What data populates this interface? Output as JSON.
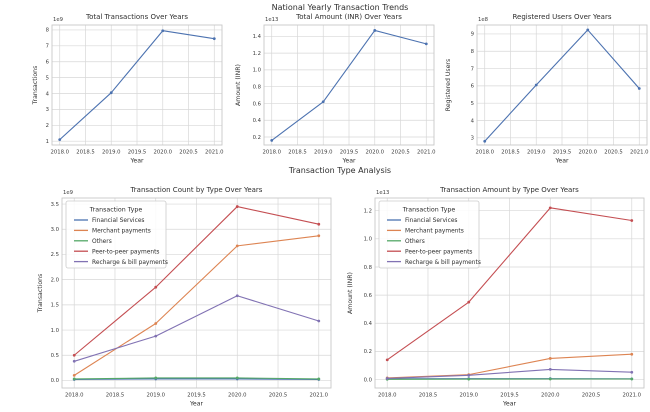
{
  "page": {
    "suptitle_top": "National Yearly Transaction Trends",
    "suptitle_bottom": "Transaction Type Analysis"
  },
  "palette": {
    "blue": "#4c72b0",
    "orange": "#dd8452",
    "green": "#55a868",
    "red": "#c44e52",
    "purple": "#8172b3",
    "grid": "#d7d7d7",
    "frame": "#c8c8c8",
    "text": "#2f2f2f"
  },
  "chart_data": [
    {
      "id": "total-transactions",
      "type": "line",
      "title": "Total Transactions Over Years",
      "xlabel": "Year",
      "ylabel": "Transactions",
      "offset_text": "1e9",
      "grid": true,
      "x": [
        2018,
        2019,
        2020,
        2021
      ],
      "xtick_values": [
        2018.0,
        2018.5,
        2019.0,
        2019.5,
        2020.0,
        2020.5,
        2021.0
      ],
      "xtick_labels": [
        "2018.0",
        "2018.5",
        "2019.0",
        "2019.5",
        "2020.0",
        "2020.5",
        "2021.0"
      ],
      "ytick_values": [
        1,
        2,
        3,
        4,
        5,
        6,
        7,
        8
      ],
      "ytick_labels": [
        "1",
        "2",
        "3",
        "4",
        "5",
        "6",
        "7",
        "8"
      ],
      "xlim": [
        2017.85,
        2021.15
      ],
      "ylim": [
        0.76,
        8.31
      ],
      "legend": null,
      "series": [
        {
          "name": "Transactions",
          "color": "#4c72b0",
          "values": [
            1.1,
            4.05,
            7.95,
            7.45
          ]
        }
      ]
    },
    {
      "id": "total-amount",
      "type": "line",
      "title": "Total Amount (INR) Over Years",
      "xlabel": "Year",
      "ylabel": "Amount (INR)",
      "offset_text": "1e13",
      "grid": true,
      "x": [
        2018,
        2019,
        2020,
        2021
      ],
      "xtick_values": [
        2018.0,
        2018.5,
        2019.0,
        2019.5,
        2020.0,
        2020.5,
        2021.0
      ],
      "xtick_labels": [
        "2018.0",
        "2018.5",
        "2019.0",
        "2019.5",
        "2020.0",
        "2020.5",
        "2021.0"
      ],
      "ytick_values": [
        0.2,
        0.4,
        0.6,
        0.8,
        1.0,
        1.2,
        1.4
      ],
      "ytick_labels": [
        "0.2",
        "0.4",
        "0.6",
        "0.8",
        "1.0",
        "1.2",
        "1.4"
      ],
      "xlim": [
        2017.85,
        2021.15
      ],
      "ylim": [
        0.105,
        1.535
      ],
      "legend": null,
      "series": [
        {
          "name": "Amount (INR)",
          "color": "#4c72b0",
          "values": [
            0.16,
            0.62,
            1.47,
            1.31
          ]
        }
      ]
    },
    {
      "id": "registered-users",
      "type": "line",
      "title": "Registered Users Over Years",
      "xlabel": "Year",
      "ylabel": "Registered Users",
      "offset_text": "1e8",
      "grid": true,
      "x": [
        2018,
        2019,
        2020,
        2021
      ],
      "xtick_values": [
        2018.0,
        2018.5,
        2019.0,
        2019.5,
        2020.0,
        2020.5,
        2021.0
      ],
      "xtick_labels": [
        "2018.0",
        "2018.5",
        "2019.0",
        "2019.5",
        "2020.0",
        "2020.5",
        "2021.0"
      ],
      "ytick_values": [
        3,
        4,
        5,
        6,
        7,
        8,
        9
      ],
      "ytick_labels": [
        "3",
        "4",
        "5",
        "6",
        "7",
        "8",
        "9"
      ],
      "xlim": [
        2017.85,
        2021.15
      ],
      "ylim": [
        2.585,
        9.515
      ],
      "legend": null,
      "series": [
        {
          "name": "Registered Users",
          "color": "#4c72b0",
          "values": [
            2.8,
            6.05,
            9.23,
            5.85
          ]
        }
      ]
    },
    {
      "id": "transaction-count-by-type",
      "type": "line",
      "title": "Transaction Count by Type Over Years",
      "xlabel": "Year",
      "ylabel": "Transactions",
      "offset_text": "1e9",
      "grid": true,
      "x": [
        2018,
        2019,
        2020,
        2021
      ],
      "xtick_values": [
        2018.0,
        2018.5,
        2019.0,
        2019.5,
        2020.0,
        2020.5,
        2021.0
      ],
      "xtick_labels": [
        "2018.0",
        "2018.5",
        "2019.0",
        "2019.5",
        "2020.0",
        "2020.5",
        "2021.0"
      ],
      "ytick_values": [
        0.0,
        0.5,
        1.0,
        1.5,
        2.0,
        2.5,
        3.0,
        3.5
      ],
      "ytick_labels": [
        "0.0",
        "0.5",
        "1.0",
        "1.5",
        "2.0",
        "2.5",
        "3.0",
        "3.5"
      ],
      "xlim": [
        2017.85,
        2021.15
      ],
      "ylim": [
        -0.15,
        3.62
      ],
      "legend": {
        "title": "Transaction Type",
        "position": "upper-left"
      },
      "series": [
        {
          "name": "Financial Services",
          "color": "#4c72b0",
          "values": [
            0.02,
            0.03,
            0.03,
            0.02
          ]
        },
        {
          "name": "Merchant payments",
          "color": "#dd8452",
          "values": [
            0.1,
            1.13,
            2.67,
            2.87
          ]
        },
        {
          "name": "Others",
          "color": "#55a868",
          "values": [
            0.03,
            0.05,
            0.05,
            0.03
          ]
        },
        {
          "name": "Peer-to-peer payments",
          "color": "#c44e52",
          "values": [
            0.5,
            1.85,
            3.45,
            3.1
          ]
        },
        {
          "name": "Recharge & bill payments",
          "color": "#8172b3",
          "values": [
            0.38,
            0.88,
            1.68,
            1.18
          ]
        }
      ]
    },
    {
      "id": "transaction-amount-by-type",
      "type": "line",
      "title": "Transaction Amount by Type Over Years",
      "xlabel": "Year",
      "ylabel": "Amount (INR)",
      "offset_text": "1e13",
      "grid": true,
      "x": [
        2018,
        2019,
        2020,
        2021
      ],
      "xtick_values": [
        2018.0,
        2018.5,
        2019.0,
        2019.5,
        2020.0,
        2020.5,
        2021.0
      ],
      "xtick_labels": [
        "2018.0",
        "2018.5",
        "2019.0",
        "2019.5",
        "2020.0",
        "2020.5",
        "2021.0"
      ],
      "ytick_values": [
        0.0,
        0.2,
        0.4,
        0.6,
        0.8,
        1.0,
        1.2
      ],
      "ytick_labels": [
        "0.0",
        "0.2",
        "0.4",
        "0.6",
        "0.8",
        "1.0",
        "1.2"
      ],
      "xlim": [
        2017.85,
        2021.15
      ],
      "ylim": [
        -0.06,
        1.29
      ],
      "legend": {
        "title": "Transaction Type",
        "position": "upper-left"
      },
      "series": [
        {
          "name": "Financial Services",
          "color": "#4c72b0",
          "values": [
            0.005,
            0.006,
            0.006,
            0.005
          ]
        },
        {
          "name": "Merchant payments",
          "color": "#dd8452",
          "values": [
            0.012,
            0.035,
            0.15,
            0.18
          ]
        },
        {
          "name": "Others",
          "color": "#55a868",
          "values": [
            0.002,
            0.003,
            0.004,
            0.004
          ]
        },
        {
          "name": "Peer-to-peer payments",
          "color": "#c44e52",
          "values": [
            0.14,
            0.55,
            1.22,
            1.13
          ]
        },
        {
          "name": "Recharge & bill payments",
          "color": "#8172b3",
          "values": [
            0.008,
            0.03,
            0.072,
            0.052
          ]
        }
      ]
    }
  ]
}
